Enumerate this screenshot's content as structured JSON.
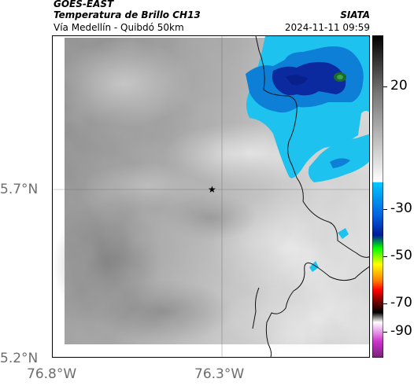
{
  "header": {
    "satellite": "GOES-EAST",
    "product": "Temperatura de Brillo CH13",
    "route": "Vía Medellín - Quibdó 50km",
    "org": "SIATA",
    "timestamp": "2024-11-11 09:59"
  },
  "axes": {
    "lat_labels": [
      "5.7°N",
      "5.2°N"
    ],
    "lon_labels": [
      "76.8°W",
      "76.3°W"
    ]
  },
  "colorbar": {
    "labels": [
      "20",
      "-30",
      "-50",
      "-70",
      "-90"
    ],
    "stops": [
      "#000000",
      "#777777",
      "#ffffff",
      "#00c8ff",
      "#0060e0",
      "#001a99",
      "#00ff00",
      "#ffff00",
      "#ff8000",
      "#ff0000",
      "#660000",
      "#000000",
      "#ffffff",
      "#cc33cc",
      "#772277"
    ]
  },
  "colors": {
    "cold_cloud_light": "#1ec2ee",
    "cold_cloud_mid": "#0d7fd6",
    "cold_cloud_deep": "#0b2aa0",
    "core": "#1b6a2a",
    "boundary": "#111111"
  },
  "marker": {
    "icon": "star-icon",
    "symbol": "★"
  }
}
